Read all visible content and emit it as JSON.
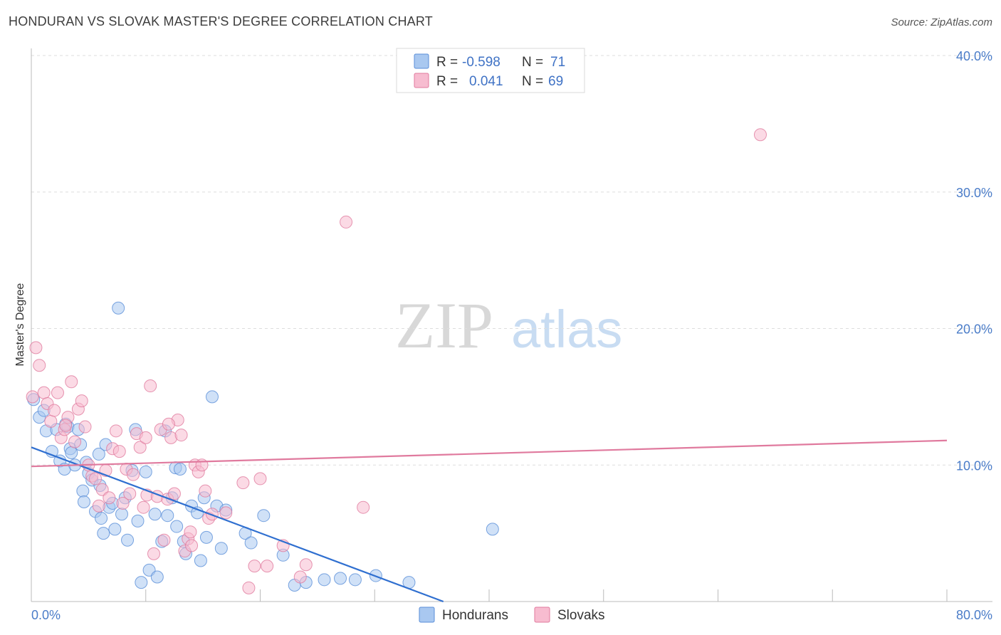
{
  "title": "HONDURAN VS SLOVAK MASTER'S DEGREE CORRELATION CHART",
  "source": "Source: ZipAtlas.com",
  "watermark": {
    "zip": "ZIP",
    "atlas": "atlas"
  },
  "legend": {
    "rows": [
      {
        "r_label": "R =",
        "r_value": "-0.598",
        "n_label": "N =",
        "n_value": "71",
        "color": "#a9c8f0",
        "stroke": "#5a8ed8"
      },
      {
        "r_label": "R =",
        "r_value": "0.041",
        "n_label": "N =",
        "n_value": "69",
        "color": "#f7bcd0",
        "stroke": "#e07a9e"
      }
    ]
  },
  "chart_data": {
    "type": "scatter",
    "title": "HONDURAN VS SLOVAK MASTER'S DEGREE CORRELATION CHART",
    "xlabel": "",
    "ylabel": "Master's Degree",
    "xlim": [
      0,
      80
    ],
    "ylim": [
      0,
      40
    ],
    "x_tick_labels": [
      "0.0%",
      "80.0%"
    ],
    "y_tick_labels": [
      "10.0%",
      "20.0%",
      "30.0%",
      "40.0%"
    ],
    "y_ticks": [
      10,
      20,
      30,
      40
    ],
    "series": [
      {
        "name": "Hondurans",
        "color": "#a9c8f0",
        "stroke": "#5a8ed8",
        "line_color": "#2f6fd0",
        "trend": [
          [
            0,
            11.3
          ],
          [
            36,
            0
          ]
        ],
        "points": [
          [
            0.2,
            14.8
          ],
          [
            0.7,
            13.5
          ],
          [
            1.3,
            12.5
          ],
          [
            1.8,
            11.0
          ],
          [
            2.2,
            12.6
          ],
          [
            2.5,
            10.3
          ],
          [
            2.9,
            9.7
          ],
          [
            3.2,
            12.8
          ],
          [
            3.4,
            11.2
          ],
          [
            3.5,
            10.9
          ],
          [
            3.8,
            10.0
          ],
          [
            4.1,
            12.6
          ],
          [
            4.3,
            11.5
          ],
          [
            4.5,
            8.1
          ],
          [
            4.6,
            7.3
          ],
          [
            4.8,
            10.2
          ],
          [
            5.0,
            9.4
          ],
          [
            5.3,
            8.9
          ],
          [
            5.6,
            6.6
          ],
          [
            5.9,
            10.8
          ],
          [
            6.1,
            6.1
          ],
          [
            6.3,
            5.0
          ],
          [
            6.5,
            11.5
          ],
          [
            6.8,
            6.9
          ],
          [
            7.1,
            7.2
          ],
          [
            7.3,
            5.3
          ],
          [
            7.6,
            21.5
          ],
          [
            7.9,
            6.4
          ],
          [
            8.2,
            7.6
          ],
          [
            8.4,
            4.5
          ],
          [
            8.8,
            9.6
          ],
          [
            9.1,
            12.6
          ],
          [
            9.3,
            5.9
          ],
          [
            9.6,
            1.4
          ],
          [
            10.0,
            9.5
          ],
          [
            10.3,
            2.3
          ],
          [
            10.8,
            6.4
          ],
          [
            11.0,
            1.8
          ],
          [
            11.4,
            4.4
          ],
          [
            11.7,
            12.5
          ],
          [
            11.9,
            6.3
          ],
          [
            12.3,
            7.6
          ],
          [
            12.6,
            9.8
          ],
          [
            13.0,
            9.7
          ],
          [
            13.3,
            4.4
          ],
          [
            13.5,
            3.5
          ],
          [
            14.0,
            7.0
          ],
          [
            14.5,
            6.5
          ],
          [
            14.8,
            3.0
          ],
          [
            15.1,
            7.6
          ],
          [
            15.3,
            4.7
          ],
          [
            15.8,
            15.0
          ],
          [
            16.2,
            7.0
          ],
          [
            16.6,
            3.9
          ],
          [
            17.0,
            6.7
          ],
          [
            18.7,
            5.0
          ],
          [
            19.2,
            4.3
          ],
          [
            20.3,
            6.3
          ],
          [
            22.0,
            3.4
          ],
          [
            23.0,
            1.2
          ],
          [
            24.0,
            1.4
          ],
          [
            25.6,
            1.6
          ],
          [
            27.0,
            1.7
          ],
          [
            28.3,
            1.6
          ],
          [
            30.1,
            1.9
          ],
          [
            33.0,
            1.4
          ],
          [
            40.3,
            5.3
          ],
          [
            1.1,
            14.0
          ],
          [
            3.0,
            13.0
          ],
          [
            6.0,
            8.5
          ],
          [
            12.7,
            5.5
          ]
        ]
      },
      {
        "name": "Slovaks",
        "color": "#f7bcd0",
        "stroke": "#e07a9e",
        "line_color": "#e07a9e",
        "trend": [
          [
            0,
            9.9
          ],
          [
            80,
            11.8
          ]
        ],
        "points": [
          [
            0.1,
            15.0
          ],
          [
            0.4,
            18.6
          ],
          [
            0.7,
            17.3
          ],
          [
            1.1,
            15.3
          ],
          [
            1.4,
            14.5
          ],
          [
            1.7,
            13.2
          ],
          [
            2.0,
            14.0
          ],
          [
            2.3,
            15.3
          ],
          [
            2.6,
            12.0
          ],
          [
            2.9,
            12.6
          ],
          [
            3.2,
            13.5
          ],
          [
            3.5,
            16.1
          ],
          [
            3.8,
            11.7
          ],
          [
            4.1,
            14.1
          ],
          [
            4.4,
            14.7
          ],
          [
            4.7,
            12.8
          ],
          [
            5.0,
            10.0
          ],
          [
            5.3,
            9.2
          ],
          [
            5.6,
            9.0
          ],
          [
            5.9,
            7.0
          ],
          [
            6.2,
            8.2
          ],
          [
            6.5,
            9.6
          ],
          [
            6.8,
            7.6
          ],
          [
            7.1,
            11.2
          ],
          [
            7.4,
            12.5
          ],
          [
            7.7,
            11.0
          ],
          [
            8.0,
            7.2
          ],
          [
            8.3,
            9.7
          ],
          [
            8.6,
            7.9
          ],
          [
            8.9,
            9.3
          ],
          [
            9.2,
            12.3
          ],
          [
            9.5,
            11.3
          ],
          [
            9.8,
            6.9
          ],
          [
            10.1,
            7.8
          ],
          [
            10.4,
            15.8
          ],
          [
            10.7,
            3.5
          ],
          [
            11.0,
            7.7
          ],
          [
            11.3,
            12.6
          ],
          [
            11.6,
            4.5
          ],
          [
            11.9,
            7.5
          ],
          [
            12.2,
            12.0
          ],
          [
            12.5,
            7.9
          ],
          [
            12.8,
            13.3
          ],
          [
            13.1,
            12.2
          ],
          [
            13.4,
            3.7
          ],
          [
            13.7,
            4.6
          ],
          [
            14.0,
            4.1
          ],
          [
            14.3,
            10.0
          ],
          [
            14.6,
            9.5
          ],
          [
            14.9,
            10.0
          ],
          [
            15.2,
            8.1
          ],
          [
            15.5,
            6.1
          ],
          [
            15.8,
            6.4
          ],
          [
            17.0,
            6.5
          ],
          [
            18.5,
            8.7
          ],
          [
            19.0,
            1.0
          ],
          [
            20.0,
            9.0
          ],
          [
            22.0,
            4.1
          ],
          [
            23.5,
            1.8
          ],
          [
            24.0,
            2.7
          ],
          [
            27.5,
            27.8
          ],
          [
            29.0,
            6.9
          ],
          [
            63.7,
            34.2
          ],
          [
            19.5,
            2.6
          ],
          [
            20.6,
            2.6
          ],
          [
            12.0,
            13.0
          ],
          [
            10.0,
            12.0
          ],
          [
            3.0,
            12.9
          ],
          [
            13.9,
            5.1
          ]
        ]
      }
    ]
  },
  "bottom_legend": [
    {
      "label": "Hondurans",
      "color": "#a9c8f0",
      "stroke": "#5a8ed8"
    },
    {
      "label": "Slovaks",
      "color": "#f7bcd0",
      "stroke": "#e07a9e"
    }
  ]
}
